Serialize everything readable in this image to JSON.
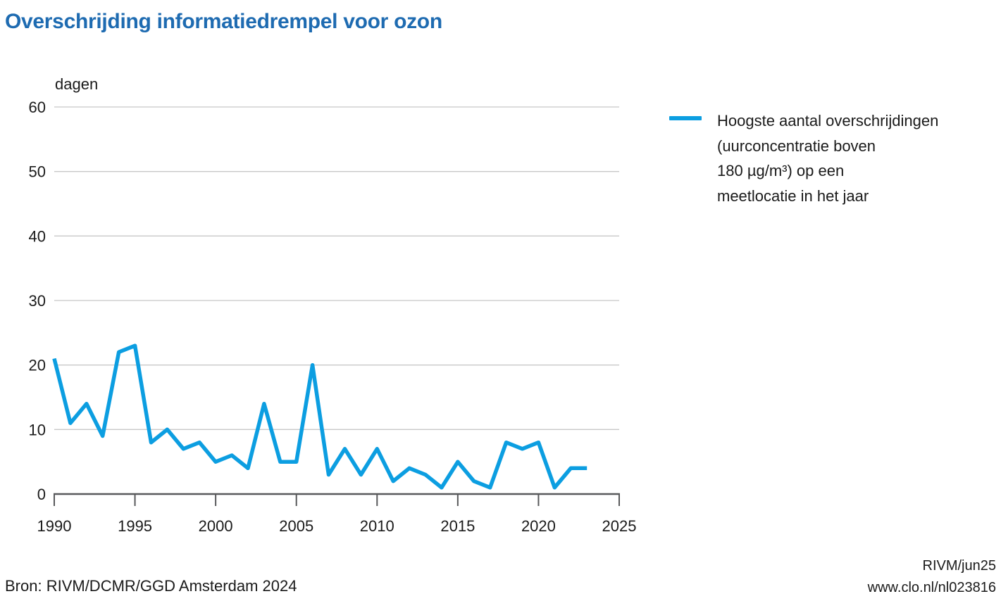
{
  "title": "Overschrijding informatiedrempel voor ozon",
  "colors": {
    "title_blue": "#1e6bb1",
    "line_blue": "#0c9ee1",
    "gridline_gray": "#c8c8c8",
    "axis_gray": "#58595b",
    "text_black": "#1a1a1a"
  },
  "legend": {
    "lines": [
      "Hoogste aantal overschrijdingen",
      "(uurconcentratie boven",
      "180 µg/m³) op een",
      "meetlocatie in het jaar"
    ]
  },
  "footer": {
    "source": "Bron: RIVM/DCMR/GGD Amsterdam 2024",
    "credit": "RIVM/jun25",
    "url": "www.clo.nl/nl023816"
  },
  "chart_data": {
    "type": "line",
    "title": "Overschrijding informatiedrempel voor ozon",
    "ylabel": "dagen",
    "xlabel": "",
    "x": [
      1990,
      1991,
      1992,
      1993,
      1994,
      1995,
      1996,
      1997,
      1998,
      1999,
      2000,
      2001,
      2002,
      2003,
      2004,
      2005,
      2006,
      2007,
      2008,
      2009,
      2010,
      2011,
      2012,
      2013,
      2014,
      2015,
      2016,
      2017,
      2018,
      2019,
      2020,
      2021,
      2022,
      2023
    ],
    "series": [
      {
        "name": "Hoogste aantal overschrijdingen (uurconcentratie boven 180 µg/m³) op een meetlocatie in het jaar",
        "values": [
          21,
          11,
          14,
          9,
          22,
          23,
          8,
          10,
          7,
          8,
          5,
          6,
          4,
          14,
          5,
          5,
          20,
          3,
          7,
          3,
          7,
          2,
          4,
          3,
          1,
          5,
          2,
          1,
          8,
          7,
          8,
          1,
          4,
          4
        ]
      }
    ],
    "xlim": [
      1990,
      2025
    ],
    "ylim": [
      0,
      60
    ],
    "xticks": [
      1990,
      1995,
      2000,
      2005,
      2010,
      2015,
      2020,
      2025
    ],
    "yticks": [
      0,
      10,
      20,
      30,
      40,
      50,
      60
    ],
    "grid": "horizontal",
    "legend_position": "right"
  }
}
